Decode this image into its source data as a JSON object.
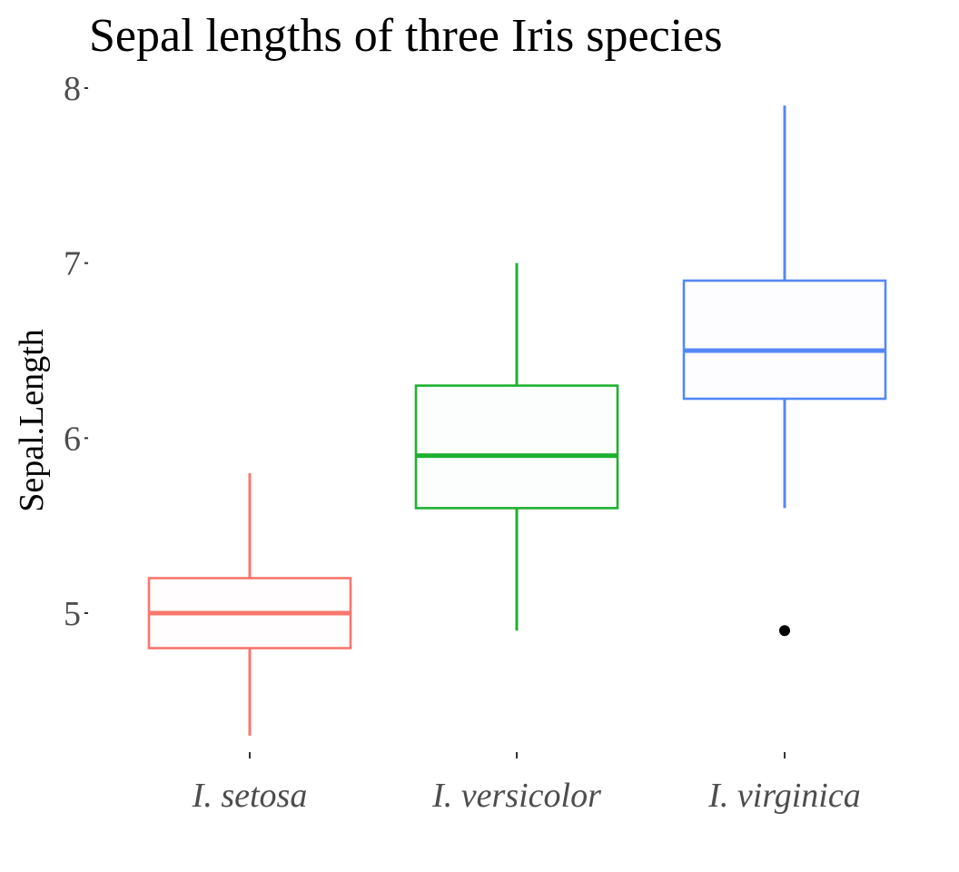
{
  "chart_data": {
    "type": "boxplot",
    "title": "Sepal lengths of three Iris species",
    "xlabel": "",
    "ylabel": "Sepal.Length",
    "ylim": [
      4.2,
      8.1
    ],
    "yticks": [
      "5",
      "6",
      "7",
      "8"
    ],
    "ytick_values": [
      5,
      6,
      7,
      8
    ],
    "categories": [
      "I. setosa",
      "I. versicolor",
      "I. virginica"
    ],
    "series": [
      {
        "category": "I. setosa",
        "color": "#F8766D",
        "fill": "#FFFDFD",
        "min": 4.3,
        "q1": 4.8,
        "median": 5.0,
        "q3": 5.2,
        "max": 5.8,
        "outliers": []
      },
      {
        "category": "I. versicolor",
        "color": "#1DB12F",
        "fill": "#FBFEFD",
        "min": 4.9,
        "q1": 5.6,
        "median": 5.9,
        "q3": 6.3,
        "max": 7.0,
        "outliers": []
      },
      {
        "category": "I. virginica",
        "color": "#5588F5",
        "fill": "#FDFDFF",
        "min": 5.6,
        "q1": 6.225,
        "median": 6.5,
        "q3": 6.9,
        "max": 7.9,
        "outliers": [
          4.9
        ]
      }
    ],
    "outlier_color": "#000000",
    "grid": false,
    "legend": "none"
  }
}
